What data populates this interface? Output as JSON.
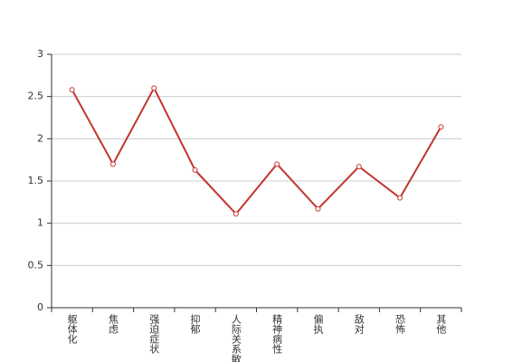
{
  "chart_data": {
    "type": "line",
    "categories": [
      "躯体化",
      "焦虑",
      "强迫症状",
      "抑郁",
      "人际关系敏感",
      "精神病性",
      "偏执",
      "敌对",
      "恐怖",
      "其他"
    ],
    "values": [
      2.58,
      1.7,
      2.6,
      1.63,
      1.11,
      1.7,
      1.17,
      1.67,
      1.3,
      2.14
    ],
    "color": "#c23531",
    "ylim": [
      0,
      3
    ],
    "yticks": [
      0,
      0.5,
      1,
      1.5,
      2,
      2.5,
      3
    ],
    "grid": true
  }
}
